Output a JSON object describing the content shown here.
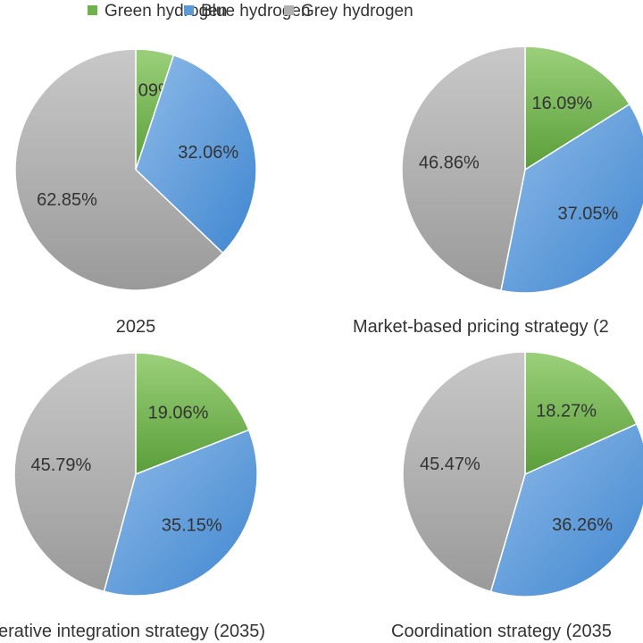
{
  "chart_data": {
    "type": "pie",
    "legend": {
      "position": "top",
      "entries": [
        "Green hydrogen",
        "Blue hydrogen",
        "Grey hydrogen"
      ]
    },
    "colors": {
      "green": [
        "#9bd07a",
        "#5a9e3a"
      ],
      "blue": [
        "#8fbbe8",
        "#3f86d0"
      ],
      "grey": [
        "#c8c8c8",
        "#9a9a9a"
      ]
    },
    "charts": [
      {
        "title": "2025",
        "labels": [
          "5.09%",
          "32.06%",
          "62.85%"
        ],
        "values": [
          5.09,
          32.06,
          62.85
        ]
      },
      {
        "title": "Market-based pricing strategy (2",
        "labels": [
          "16.09%",
          "37.05%",
          "46.86%"
        ],
        "values": [
          16.09,
          37.05,
          46.86
        ]
      },
      {
        "title": "erative integration strategy (2035)",
        "labels": [
          "19.06%",
          "35.15%",
          "45.79%"
        ],
        "values": [
          19.06,
          35.15,
          45.79
        ]
      },
      {
        "title": "Coordination strategy (2035",
        "labels": [
          "18.27%",
          "36.26%",
          "45.47%"
        ],
        "values": [
          18.27,
          36.26,
          45.47
        ]
      }
    ]
  }
}
